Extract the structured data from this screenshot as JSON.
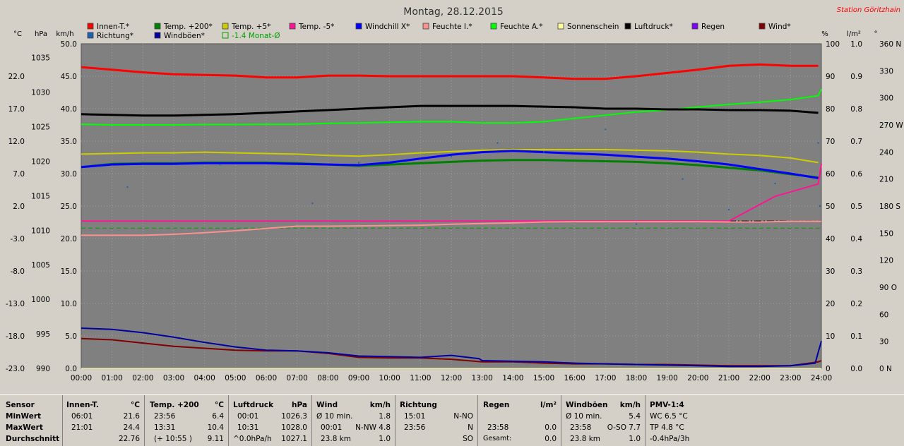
{
  "station": "Station Göritzhain",
  "chart_data": {
    "type": "line",
    "title": "Montag, 28.12.2015",
    "x_ticks": [
      "00:00",
      "01:00",
      "02:00",
      "03:00",
      "04:00",
      "05:00",
      "06:00",
      "07:00",
      "08:00",
      "09:00",
      "10:00",
      "11:00",
      "12:00",
      "13:00",
      "14:00",
      "15:00",
      "16:00",
      "17:00",
      "18:00",
      "19:00",
      "20:00",
      "21:00",
      "22:00",
      "23:00",
      "24:00"
    ],
    "xlim": [
      0,
      24
    ],
    "axes": {
      "temp": {
        "label": "°C",
        "ylim": [
          -23,
          27
        ],
        "ticks": [
          "22.0",
          "17.0",
          "12.0",
          "7.0",
          "2.0",
          "-3.0",
          "-8.0",
          "-13.0",
          "-18.0",
          "-23.0"
        ]
      },
      "pressure": {
        "label": "hPa",
        "ylim": [
          990,
          1037
        ],
        "ticks": [
          "1035",
          "1030",
          "1025",
          "1020",
          "1015",
          "1010",
          "1005",
          "1000",
          "995",
          "990"
        ]
      },
      "wind": {
        "label": "km/h",
        "ylim": [
          0,
          50
        ],
        "ticks": [
          "50.0",
          "45.0",
          "40.0",
          "35.0",
          "30.0",
          "25.0",
          "20.0",
          "15.0",
          "10.0",
          "5.0",
          "0.0"
        ]
      },
      "humidity": {
        "label": "%",
        "ylim": [
          0,
          100
        ],
        "ticks": [
          "100",
          "90",
          "80",
          "70",
          "60",
          "50",
          "40",
          "30",
          "20",
          "10",
          "0"
        ]
      },
      "rain": {
        "label": "l/m²",
        "ylim": [
          0,
          1
        ],
        "ticks": [
          "1.0",
          "0.9",
          "0.8",
          "0.7",
          "0.6",
          "0.5",
          "0.4",
          "0.3",
          "0.2",
          "0.1",
          "0.0"
        ]
      },
      "direction": {
        "label": "°",
        "ylim": [
          0,
          360
        ],
        "ticks": [
          "360 N",
          "330",
          "300",
          "270 W",
          "240",
          "210",
          "180 S",
          "150",
          "120",
          "90 O",
          "60",
          "30",
          "0 N"
        ]
      }
    },
    "legend": [
      {
        "label": "Innen-T.*",
        "color": "#ff0000"
      },
      {
        "label": "Temp. +200*",
        "color": "#008000"
      },
      {
        "label": "Temp. +5*",
        "color": "#cccc00"
      },
      {
        "label": "Temp. -5*",
        "color": "#ff1493"
      },
      {
        "label": "Windchill X*",
        "color": "#0000ff"
      },
      {
        "label": "Feuchte I.*",
        "color": "#ff9090"
      },
      {
        "label": "Feuchte A.*",
        "color": "#00ff00"
      },
      {
        "label": "Sonnenschein",
        "color": "#ffff99"
      },
      {
        "label": "Luftdruck*",
        "color": "#000000"
      },
      {
        "label": "Regen",
        "color": "#8000ff"
      },
      {
        "label": "Wind*",
        "color": "#800000"
      },
      {
        "label": "Richtung*",
        "color": "#1f5fb0"
      },
      {
        "label": "Windböen*",
        "color": "#0000a0"
      },
      {
        "label": "-1.4 Monat-Ø",
        "color": "#00a000",
        "dashed": true
      }
    ],
    "series": [
      {
        "name": "Innen-T.*",
        "axis": "temp",
        "color": "#ff0000",
        "width": 3,
        "x": [
          0,
          1,
          2,
          3,
          4,
          5,
          6,
          7,
          8,
          9,
          10,
          11,
          12,
          13,
          14,
          15,
          16,
          17,
          18,
          19,
          20,
          21,
          22,
          23,
          23.9
        ],
        "y": [
          23.4,
          23.0,
          22.6,
          22.3,
          22.2,
          22.1,
          21.8,
          21.8,
          22.1,
          22.1,
          22.0,
          22.0,
          22.0,
          22.0,
          22.0,
          21.8,
          21.6,
          21.6,
          22.0,
          22.5,
          23.0,
          23.6,
          23.8,
          23.6,
          23.6
        ]
      },
      {
        "name": "Temp. +200*",
        "axis": "temp",
        "color": "#008000",
        "width": 3,
        "x": [
          0,
          1,
          2,
          3,
          4,
          5,
          6,
          7,
          8,
          9,
          10,
          11,
          12,
          13,
          14,
          15,
          16,
          17,
          18,
          19,
          20,
          21,
          22,
          23,
          23.9
        ],
        "y": [
          8.0,
          8.5,
          8.6,
          8.6,
          8.7,
          8.7,
          8.7,
          8.6,
          8.4,
          8.2,
          8.4,
          8.6,
          8.8,
          9.0,
          9.1,
          9.1,
          9.0,
          8.9,
          8.8,
          8.6,
          8.3,
          7.9,
          7.5,
          6.9,
          6.4
        ]
      },
      {
        "name": "Temp. +5*",
        "axis": "temp",
        "color": "#cccc00",
        "width": 2,
        "x": [
          0,
          1,
          2,
          3,
          4,
          5,
          6,
          7,
          8,
          9,
          10,
          11,
          12,
          13,
          14,
          15,
          16,
          17,
          18,
          19,
          20,
          21,
          22,
          23,
          23.9
        ],
        "y": [
          10.0,
          10.1,
          10.2,
          10.2,
          10.3,
          10.2,
          10.1,
          10.0,
          9.8,
          9.7,
          9.9,
          10.2,
          10.4,
          10.6,
          10.7,
          10.7,
          10.7,
          10.7,
          10.6,
          10.5,
          10.3,
          10.0,
          9.8,
          9.4,
          8.7
        ]
      },
      {
        "name": "Temp. -5*",
        "axis": "temp",
        "color": "#ff1493",
        "width": 2,
        "x": [
          0,
          21,
          22.5,
          23.9,
          24
        ],
        "y": [
          -0.3,
          -0.3,
          3.5,
          5.4,
          8.5
        ]
      },
      {
        "name": "Windchill X*",
        "axis": "temp",
        "color": "#0000ff",
        "width": 3,
        "x": [
          0,
          1,
          2,
          3,
          4,
          5,
          6,
          7,
          8,
          9,
          10,
          11,
          12,
          13,
          14,
          15,
          16,
          17,
          18,
          19,
          20,
          21,
          22,
          23,
          23.9
        ],
        "y": [
          8.0,
          8.4,
          8.5,
          8.5,
          8.6,
          8.6,
          8.6,
          8.5,
          8.4,
          8.3,
          8.7,
          9.3,
          9.9,
          10.3,
          10.5,
          10.3,
          10.1,
          9.9,
          9.6,
          9.3,
          8.9,
          8.4,
          7.7,
          7.0,
          6.3
        ]
      },
      {
        "name": "Feuchte I.*",
        "axis": "humidity",
        "color": "#ff9090",
        "width": 2,
        "x": [
          0,
          1,
          2,
          3,
          4,
          5,
          6,
          7,
          8,
          9,
          10,
          11,
          12,
          13,
          14,
          15,
          16,
          17,
          18,
          19,
          20,
          21,
          22,
          23,
          24
        ],
        "y": [
          41,
          41,
          41,
          41.3,
          41.8,
          42.4,
          43.1,
          43.8,
          43.8,
          43.9,
          44,
          44.1,
          44.4,
          44.6,
          44.8,
          45.1,
          45.2,
          45.2,
          45.2,
          45.2,
          45.2,
          45.1,
          45.1,
          45.3,
          45.3
        ]
      },
      {
        "name": "Feuchte A.*",
        "axis": "humidity",
        "color": "#00ff00",
        "width": 2,
        "x": [
          0,
          1,
          2,
          3,
          4,
          5,
          6,
          7,
          8,
          9,
          10,
          11,
          12,
          13,
          14,
          15,
          16,
          17,
          18,
          19,
          20,
          21,
          22,
          23,
          23.9,
          24
        ],
        "y": [
          75.2,
          75.0,
          75.0,
          75.0,
          75.1,
          75.1,
          75.2,
          75.2,
          75.5,
          75.6,
          75.8,
          76.0,
          76.0,
          75.6,
          75.6,
          76.0,
          77.0,
          78.0,
          79.0,
          79.6,
          80.5,
          81.3,
          82.0,
          82.8,
          84,
          86
        ]
      },
      {
        "name": "Sonnenschein",
        "axis": "wind",
        "color": "#ffff99",
        "width": 1,
        "x": [
          0,
          24
        ],
        "y": [
          0,
          0
        ]
      },
      {
        "name": "Luftdruck*",
        "axis": "pressure",
        "color": "#000000",
        "width": 3,
        "x": [
          0,
          1,
          2,
          3,
          4,
          5,
          6,
          7,
          8,
          9,
          10,
          11,
          12,
          13,
          14,
          15,
          16,
          17,
          18,
          19,
          20,
          21,
          22,
          23,
          23.9
        ],
        "y": [
          1026.8,
          1026.7,
          1026.6,
          1026.6,
          1026.7,
          1026.8,
          1027.0,
          1027.2,
          1027.4,
          1027.6,
          1027.8,
          1028.0,
          1028.0,
          1028.0,
          1028.0,
          1027.9,
          1027.8,
          1027.6,
          1027.6,
          1027.5,
          1027.5,
          1027.4,
          1027.4,
          1027.3,
          1027.0
        ]
      },
      {
        "name": "Wind*",
        "axis": "wind",
        "color": "#800000",
        "width": 2,
        "x": [
          0,
          1,
          2,
          3,
          4,
          5,
          6,
          7,
          8,
          9,
          10,
          11,
          12,
          13,
          14,
          15,
          16,
          17,
          18,
          19,
          20,
          21,
          22,
          23,
          23.9,
          24
        ],
        "y": [
          4.6,
          4.4,
          3.9,
          3.4,
          3.1,
          2.8,
          2.7,
          2.7,
          2.3,
          1.7,
          1.6,
          1.6,
          1.4,
          1.0,
          1.0,
          0.8,
          0.7,
          0.7,
          0.6,
          0.6,
          0.5,
          0.4,
          0.4,
          0.4,
          1.0,
          1.2
        ]
      },
      {
        "name": "Windböen*",
        "axis": "wind",
        "color": "#0000a0",
        "width": 2,
        "x": [
          0,
          1,
          2,
          3,
          4,
          5,
          6,
          7,
          8,
          9,
          10,
          11,
          12,
          12.9,
          13,
          14,
          15,
          16,
          17,
          18,
          19,
          20,
          21,
          22,
          23,
          23.8,
          23.9,
          24
        ],
        "y": [
          6.2,
          6.0,
          5.5,
          4.8,
          4.0,
          3.3,
          2.8,
          2.7,
          2.4,
          1.9,
          1.8,
          1.7,
          2.0,
          1.5,
          1.2,
          1.1,
          1.0,
          0.8,
          0.7,
          0.6,
          0.5,
          0.4,
          0.3,
          0.3,
          0.4,
          0.8,
          2.5,
          4.2
        ]
      },
      {
        "name": "Richtung*",
        "axis": "direction",
        "color": "#1f5fb0",
        "type": "scatter",
        "x": [
          1.5,
          4.5,
          7.5,
          9.0,
          12.0,
          13.5,
          15.0,
          17.0,
          18.0,
          19.5,
          21.0,
          22.5,
          23.9,
          23.95
        ],
        "y": [
          201,
          226,
          183,
          228,
          235,
          250,
          240,
          265,
          160,
          210,
          176,
          205,
          250,
          180
        ]
      }
    ],
    "reference_lines": [
      {
        "name": "-1.4 Monat-Ø",
        "axis": "temp",
        "y": -1.4,
        "color": "#00a000",
        "dashed": true,
        "x": [
          0,
          24
        ]
      },
      {
        "name": "",
        "axis": "temp",
        "y": -0.3,
        "color": "#000000",
        "dashed": true,
        "x": [
          21,
          24
        ]
      }
    ]
  },
  "stats": {
    "sensor": {
      "header": "Sensor",
      "rows": [
        "MinWert",
        "MaxWert",
        "Durchschnitt"
      ]
    },
    "innen": {
      "header": "Innen-T.",
      "unit": "°C",
      "rows": [
        [
          "06:01",
          "21.6"
        ],
        [
          "21:01",
          "24.4"
        ],
        [
          "",
          "22.76"
        ]
      ]
    },
    "temp200": {
      "header": "Temp. +200",
      "unit": "°C",
      "rows": [
        [
          "23:56",
          "6.4"
        ],
        [
          "13:31",
          "10.4"
        ],
        [
          "(+ 10:55 )",
          "9.11"
        ]
      ]
    },
    "luftdruck": {
      "header": "Luftdruck",
      "unit": "hPa",
      "rows": [
        [
          "00:01",
          "1026.3"
        ],
        [
          "10:31",
          "1028.0"
        ],
        [
          "^0.0hPa/h",
          "1027.1"
        ]
      ]
    },
    "wind": {
      "header": "Wind",
      "unit": "km/h",
      "rows": [
        [
          "Ø 10 min.",
          "1.8"
        ],
        [
          "00:01",
          "N-NW 4.8"
        ],
        [
          "23.8 km",
          "1.0"
        ]
      ]
    },
    "richtung": {
      "header": "Richtung",
      "rows": [
        [
          "15:01",
          "N-NO"
        ],
        [
          "23:56",
          "N"
        ],
        [
          "",
          "SO"
        ]
      ]
    },
    "regen": {
      "header": "Regen",
      "unit": "l/m²",
      "rows": [
        [
          "",
          ""
        ],
        [
          "23:58",
          "0.0"
        ],
        [
          "Gesamt:",
          "0.0"
        ]
      ]
    },
    "boen": {
      "header": "Windböen",
      "unit": "km/h",
      "rows": [
        [
          "Ø 10 min.",
          "5.4"
        ],
        [
          "23:58",
          "O-SO 7.7"
        ],
        [
          "23.8 km",
          "1.0"
        ]
      ]
    },
    "pmv": {
      "header": "PMV-1:4",
      "rows": [
        "WC 6.5 °C",
        "TP 4.8 °C",
        "-0.4hPa/3h"
      ]
    }
  }
}
